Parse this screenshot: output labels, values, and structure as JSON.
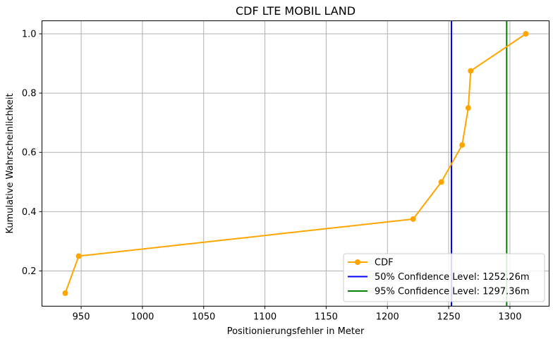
{
  "chart_data": {
    "type": "line",
    "title": "CDF LTE MOBIL LAND",
    "xlabel": "Positionierungsfehler in Meter",
    "ylabel": "Kumulative Wahrscheinlichkeit",
    "xlim": [
      918,
      1332
    ],
    "ylim": [
      0.081,
      1.044
    ],
    "xticks": [
      950,
      1000,
      1050,
      1100,
      1150,
      1200,
      1250,
      1300
    ],
    "yticks": [
      0.2,
      0.4,
      0.6,
      0.8,
      1.0
    ],
    "xtick_labels": [
      "950",
      "1000",
      "1050",
      "1100",
      "1150",
      "1200",
      "1250",
      "1300"
    ],
    "ytick_labels": [
      "0.2",
      "0.4",
      "0.6",
      "0.8",
      "1.0"
    ],
    "grid": true,
    "legend_position": "lower-right",
    "series": [
      {
        "name": "CDF",
        "color": "#FFA500",
        "marker": "circle",
        "x": [
          937,
          948,
          1221,
          1244,
          1261,
          1266,
          1268,
          1313
        ],
        "y": [
          0.125,
          0.25,
          0.375,
          0.5,
          0.625,
          0.75,
          0.875,
          1.0
        ]
      }
    ],
    "vlines": [
      {
        "name": "50% Confidence Level: 1252.26m",
        "x": 1252.26,
        "color": "#0000FF"
      },
      {
        "name": "95% Confidence Level: 1297.36m",
        "x": 1297.36,
        "color": "#008000"
      }
    ]
  }
}
